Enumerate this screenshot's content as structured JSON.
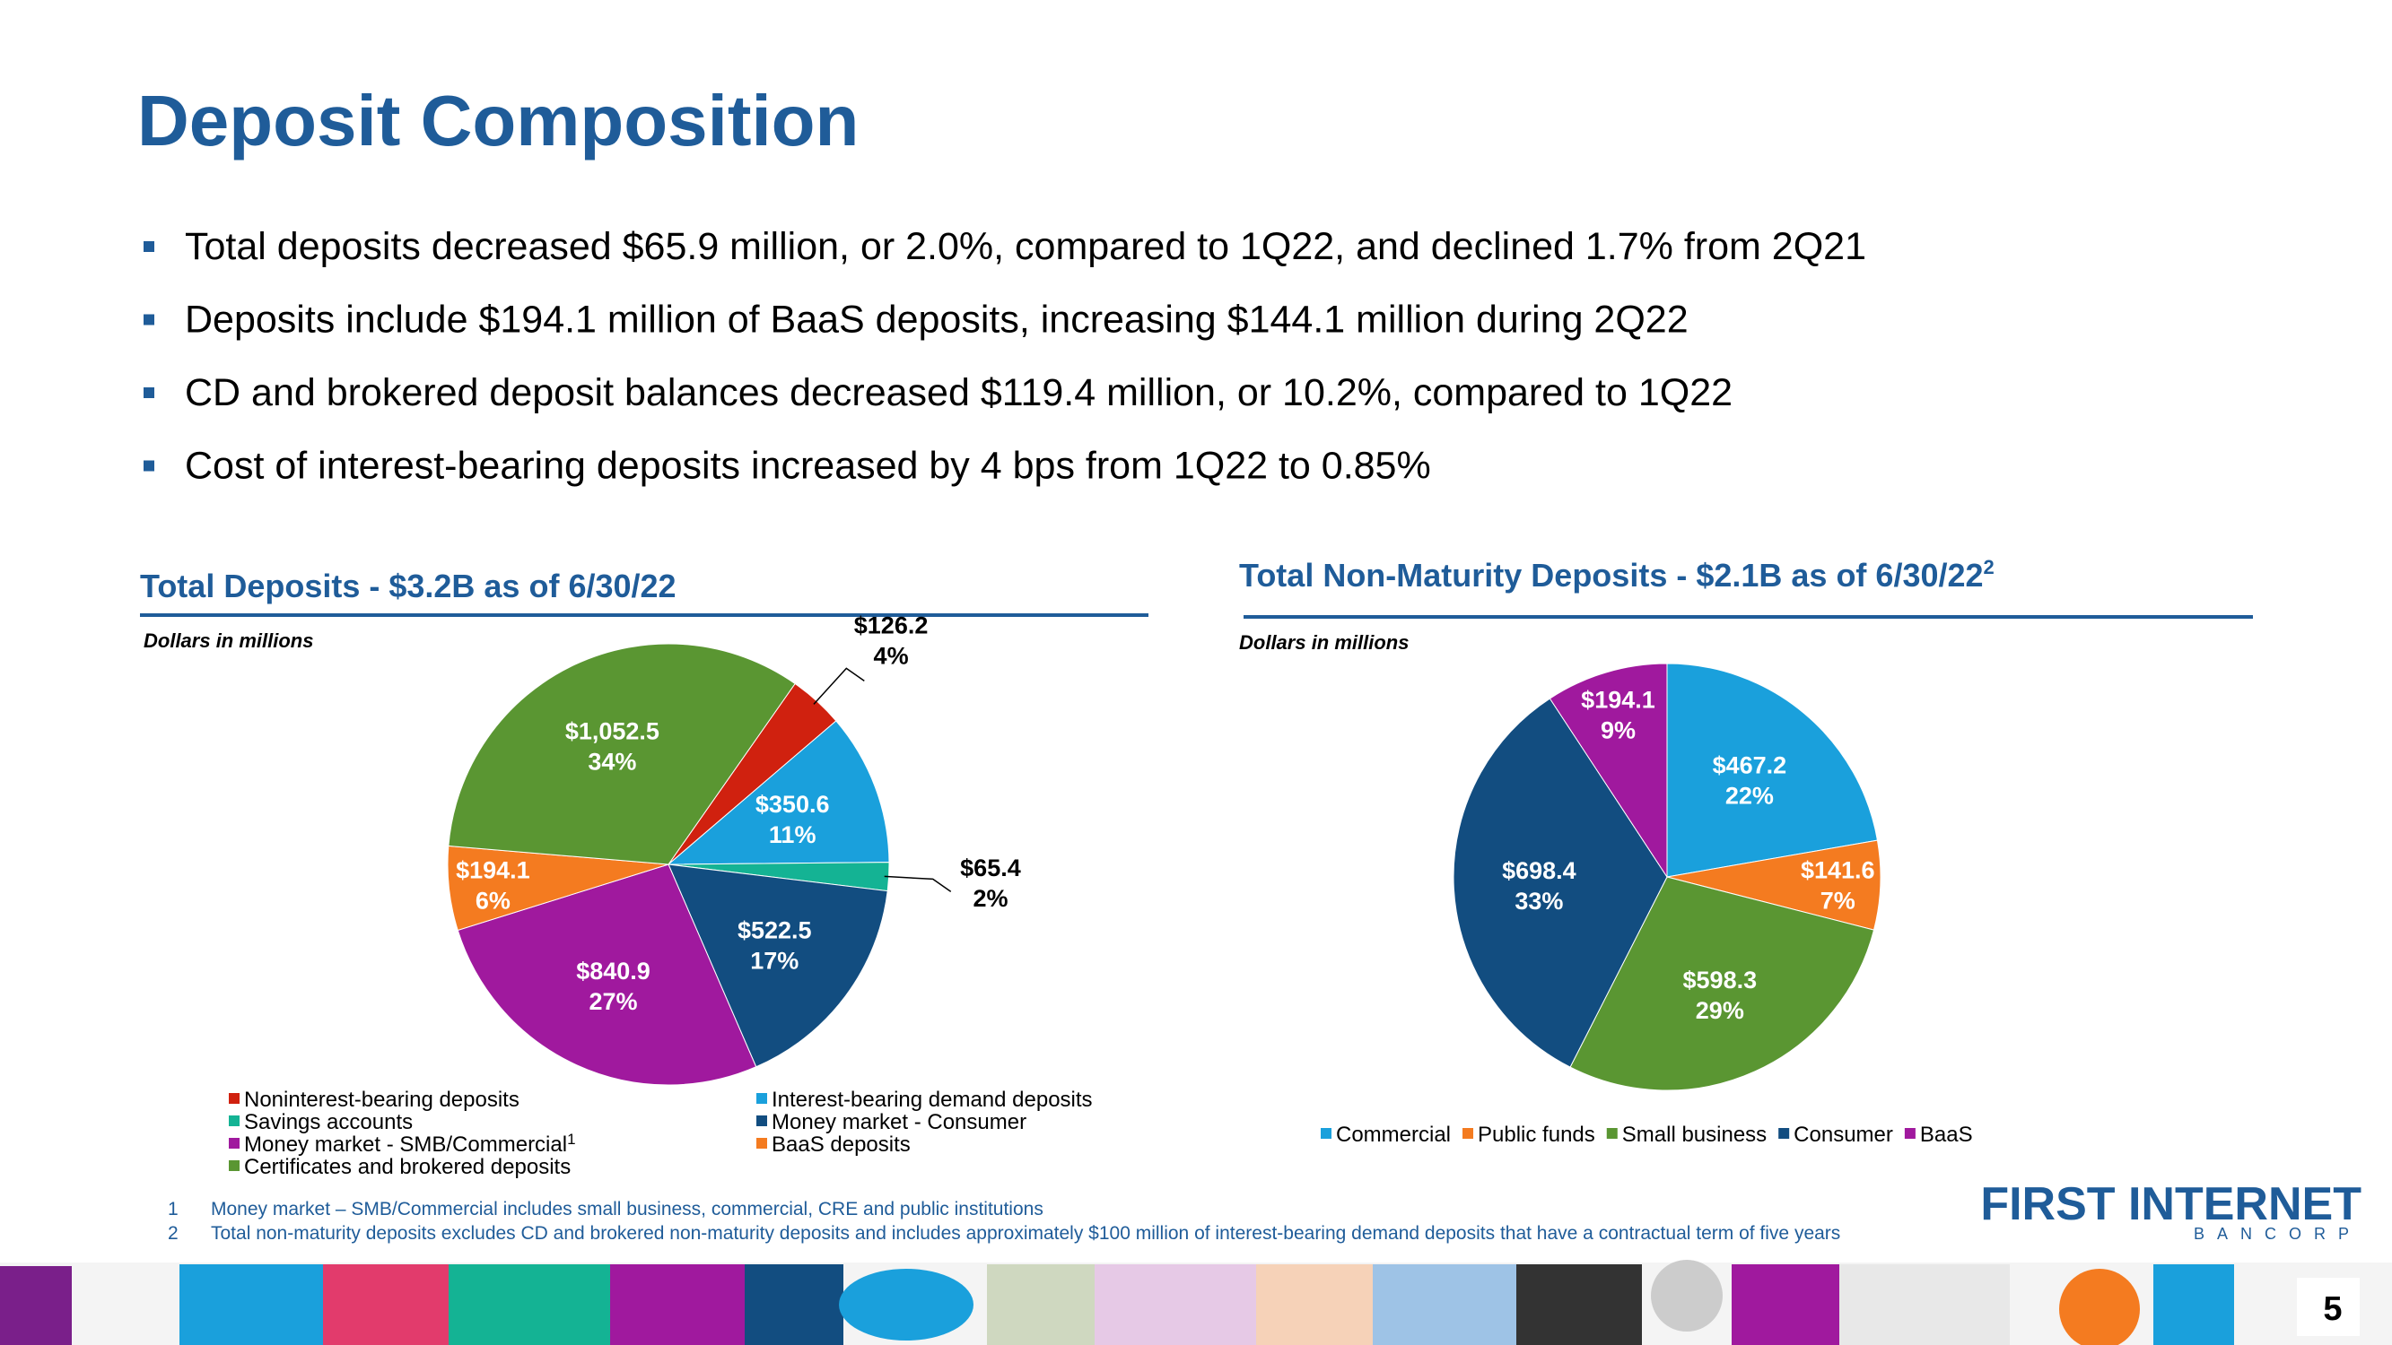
{
  "title": "Deposit Composition",
  "bullets": [
    "Total deposits decreased $65.9 million, or 2.0%, compared to 1Q22, and declined 1.7% from 2Q21",
    "Deposits include $194.1 million of BaaS deposits, increasing $144.1 million during 2Q22",
    "CD and brokered deposit balances decreased $119.4 million, or 10.2%, compared to 1Q22",
    "Cost of interest-bearing deposits increased by 4 bps from 1Q22 to 0.85%"
  ],
  "chart_data": [
    {
      "type": "pie",
      "title": "Total Deposits - $3.2B as of 6/30/22",
      "note": "Dollars in millions",
      "categories": [
        "Noninterest-bearing deposits",
        "Interest-bearing demand deposits",
        "Savings accounts",
        "Money market - Consumer",
        "Money market - SMB/Commercial",
        "BaaS deposits",
        "Certificates and brokered deposits"
      ],
      "category_footnotes": [
        null,
        null,
        null,
        null,
        "1",
        null,
        null
      ],
      "values": [
        126.2,
        350.6,
        65.4,
        522.5,
        840.9,
        194.1,
        1052.5
      ],
      "value_labels": [
        "$126.2",
        "$350.6",
        "$65.4",
        "$522.5",
        "$840.9",
        "$194.1",
        "$1,052.5"
      ],
      "percent_labels": [
        "4%",
        "11%",
        "2%",
        "17%",
        "27%",
        "6%",
        "34%"
      ],
      "colors": [
        "#d0210f",
        "#1aa0dc",
        "#14b394",
        "#124d80",
        "#a0199e",
        "#f47b20",
        "#5a9632"
      ]
    },
    {
      "type": "pie",
      "title": "Total Non-Maturity Deposits - $2.1B as of 6/30/22",
      "title_footnote": "2",
      "note": "Dollars in millions",
      "categories": [
        "Commercial",
        "Public funds",
        "Small business",
        "Consumer",
        "BaaS"
      ],
      "values": [
        467.2,
        141.6,
        598.3,
        698.4,
        194.1
      ],
      "value_labels": [
        "$467.2",
        "$141.6",
        "$598.3",
        "$698.4",
        "$194.1"
      ],
      "percent_labels": [
        "22%",
        "7%",
        "29%",
        "33%",
        "9%"
      ],
      "colors": [
        "#1aa0dc",
        "#f47b20",
        "#5a9632",
        "#124d80",
        "#a0199e"
      ]
    }
  ],
  "footnotes": [
    {
      "number": "1",
      "text": "Money market – SMB/Commercial includes small business, commercial, CRE and public institutions"
    },
    {
      "number": "2",
      "text": "Total non-maturity deposits excludes CD and brokered non-maturity deposits and includes approximately $100 million of interest-bearing demand deposits that have a contractual term of five years"
    }
  ],
  "logo": {
    "name": "FIRST INTERNET",
    "sub": "BANCORP"
  },
  "page_number": "5"
}
